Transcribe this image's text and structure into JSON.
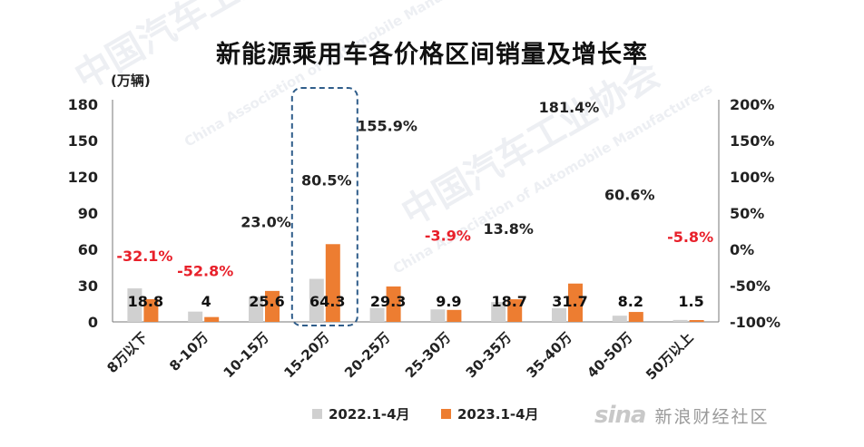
{
  "title": "新能源乘用车各价格区间销量及增长率",
  "unit_label": "(万辆)",
  "watermark": {
    "brand": "中国汽车工业协会",
    "english": "China Association of Automobile Manufacturers"
  },
  "credit": {
    "logo": "sina",
    "text": "新浪财经社区"
  },
  "colors": {
    "series_2022": "#d0d0d0",
    "series_2023": "#ed7d31",
    "growth_positive": "#222222",
    "growth_negative": "#e8202a",
    "highlight_box": "#2f5d8a"
  },
  "chart_data": {
    "type": "bar",
    "categories": [
      "8万以下",
      "8-10万",
      "10-15万",
      "15-20万",
      "20-25万",
      "25-30万",
      "30-35万",
      "35-40万",
      "40-50万",
      "50万以上"
    ],
    "series": [
      {
        "name": "2022.1-4月",
        "values": [
          27.7,
          8.5,
          20.8,
          35.6,
          11.5,
          10.3,
          16.4,
          11.3,
          5.1,
          1.6
        ]
      },
      {
        "name": "2023.1-4月",
        "values": [
          18.8,
          4,
          25.6,
          64.3,
          29.3,
          9.9,
          18.7,
          31.7,
          8.2,
          1.5
        ]
      }
    ],
    "data_labels_2023": [
      "18.8",
      "4",
      "25.6",
      "64.3",
      "29.3",
      "9.9",
      "18.7",
      "31.7",
      "8.2",
      "1.5"
    ],
    "growth_rates": [
      -32.1,
      -52.8,
      23.0,
      80.5,
      155.9,
      -3.9,
      13.8,
      181.4,
      60.6,
      -5.8
    ],
    "growth_labels": [
      "-32.1%",
      "-52.8%",
      "23.0%",
      "80.5%",
      "155.9%",
      "-3.9%",
      "13.8%",
      "181.4%",
      "60.6%",
      "-5.8%"
    ],
    "y_left": {
      "min": 0,
      "max": 180,
      "ticks": [
        "0",
        "30",
        "60",
        "90",
        "120",
        "150",
        "180"
      ]
    },
    "y_right": {
      "min": -100,
      "max": 200,
      "ticks": [
        "-100%",
        "-50%",
        "0%",
        "50%",
        "100%",
        "150%",
        "200%"
      ]
    },
    "highlighted_category": "15-20万",
    "legend_position": "bottom",
    "grid": false
  }
}
